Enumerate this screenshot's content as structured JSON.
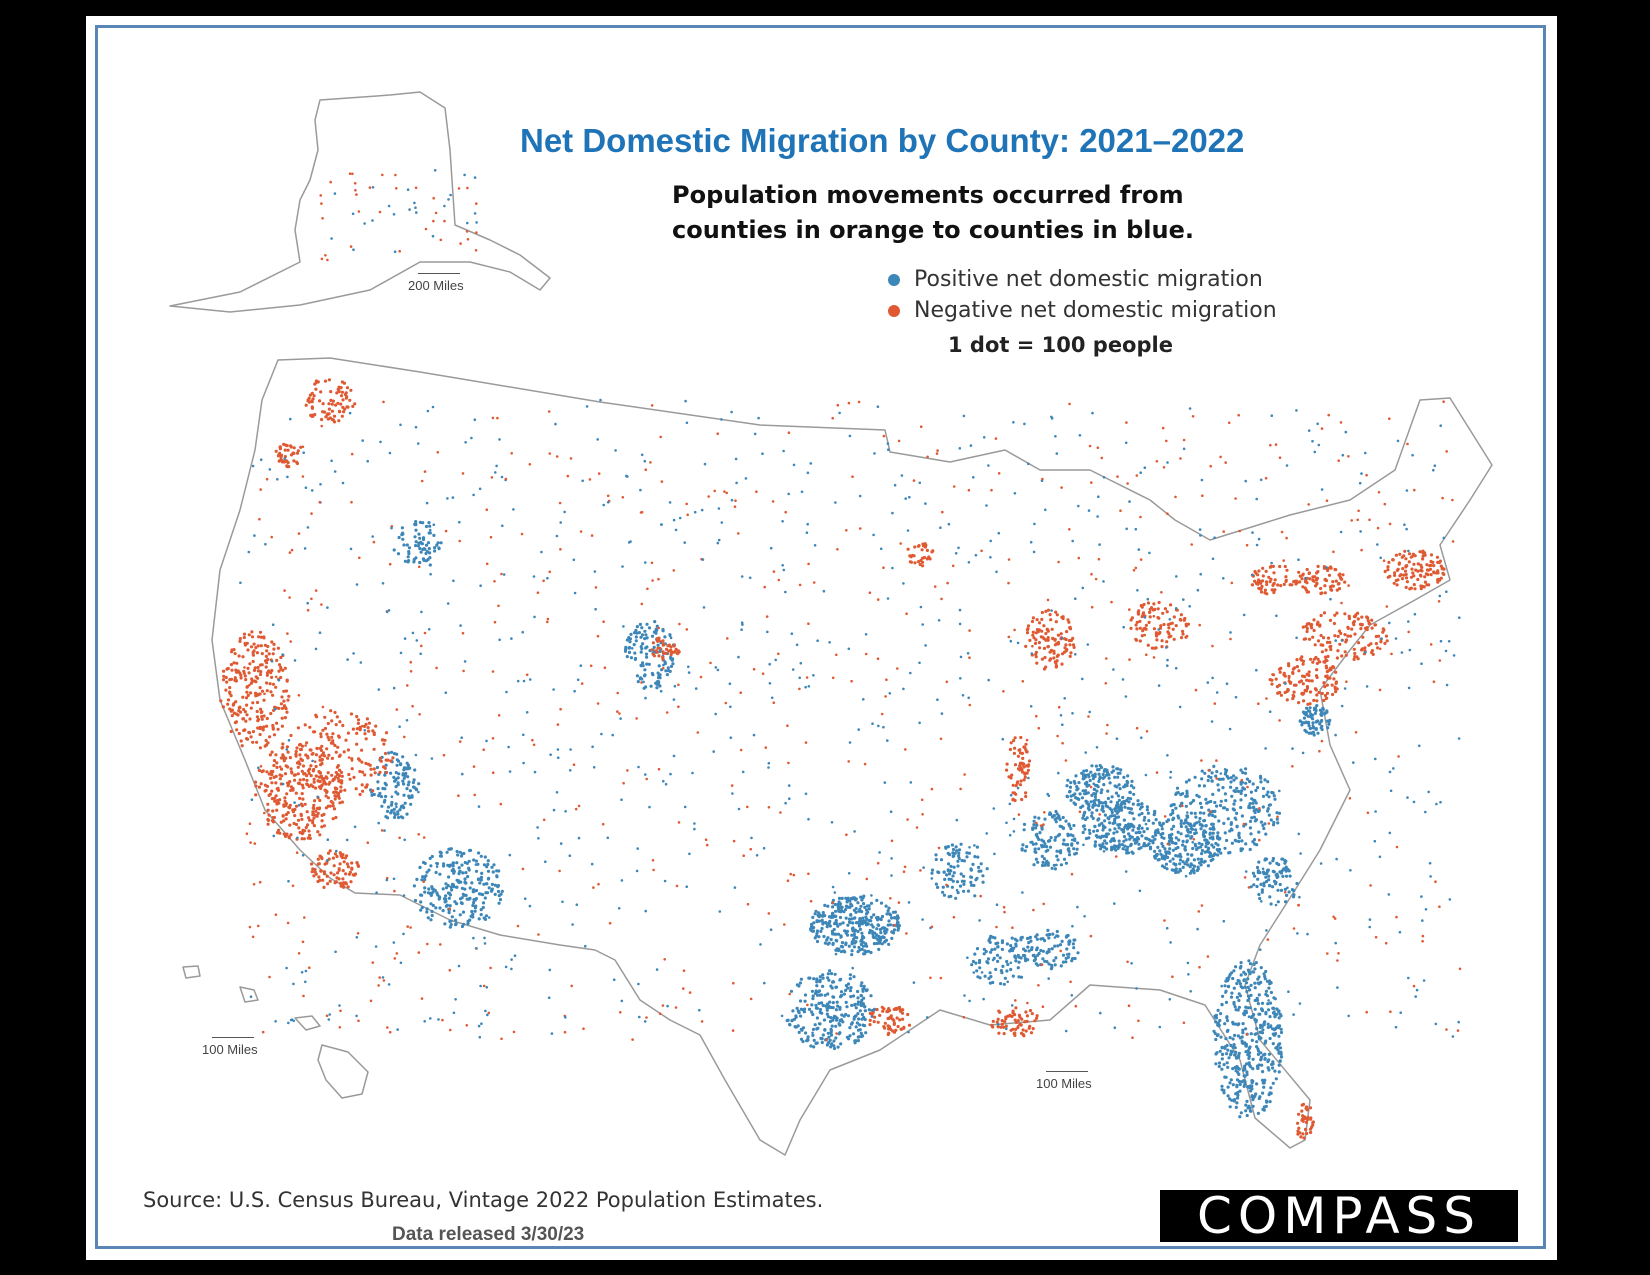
{
  "title": "Net Domestic Migration by County: 2021–2022",
  "subtitle_line1": "Population movements occurred from",
  "subtitle_line2": "counties in orange to counties in blue.",
  "legend": {
    "positive_label": "Positive net domestic migration",
    "negative_label": "Negative net domestic migration",
    "positive_color": "#3d86b8",
    "negative_color": "#df5a33",
    "dot_note": "1 dot = 100 people"
  },
  "scale_labels": {
    "alaska": "200 Miles",
    "hawaii": "100 Miles",
    "lower48": "100 Miles"
  },
  "source": "Source: U.S. Census Bureau, Vintage 2022 Population Estimates.",
  "released": "Data released 3/30/23",
  "logo": "COMPASS"
}
